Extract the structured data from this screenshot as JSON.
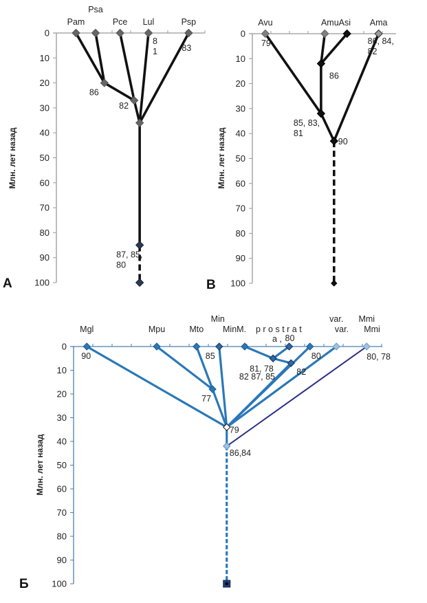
{
  "chart_data": [
    {
      "type": "tree",
      "panel": "A",
      "ylabel": "Млн. лет назад",
      "ylim": [
        0,
        100
      ],
      "yticks": [
        0,
        10,
        20,
        30,
        40,
        50,
        60,
        70,
        80,
        90,
        100
      ],
      "axis_color": "#999999",
      "line_color": "#111111",
      "marker_color": "#666666",
      "root_marker_color": "#2a3a55",
      "taxa": [
        {
          "id": "pam",
          "name": "Pam",
          "x": 1,
          "y": 0
        },
        {
          "id": "psa",
          "name": "Psa",
          "x": 2,
          "y": 0
        },
        {
          "id": "pce",
          "name": "Pce",
          "x": 3.25,
          "y": 0
        },
        {
          "id": "lul",
          "name": "Lul",
          "x": 4.7,
          "y": 0,
          "annotation": "8\n1"
        },
        {
          "id": "psp",
          "name": "Psp",
          "x": 6.75,
          "y": 0,
          "annotation": "83"
        }
      ],
      "nodes": [
        {
          "id": "n1",
          "x": 2.45,
          "y": 20,
          "annotation": "86"
        },
        {
          "id": "n2",
          "x": 3.97,
          "y": 27,
          "annotation": "82"
        },
        {
          "id": "n3",
          "x": 4.25,
          "y": 36,
          "annotation": ""
        },
        {
          "id": "n4",
          "x": 4.25,
          "y": 85,
          "annotation": "87, 85,\n80",
          "root": true
        },
        {
          "id": "n5",
          "x": 4.25,
          "y": 100,
          "annotation": "",
          "root": true
        }
      ],
      "edges": [
        [
          "pam",
          "n1"
        ],
        [
          "psa",
          "n1"
        ],
        [
          "n1",
          "n2"
        ],
        [
          "pce",
          "n2"
        ],
        [
          "n2",
          "n3"
        ],
        [
          "lul",
          "n3"
        ],
        [
          "psp",
          "n3"
        ],
        [
          "n3",
          "n4"
        ],
        {
          "from": "n4",
          "to": "n5",
          "dashed": true
        }
      ]
    },
    {
      "type": "tree",
      "panel": "B",
      "ylabel": "Млн. лет назад",
      "ylim": [
        0,
        100
      ],
      "yticks": [
        0,
        10,
        20,
        30,
        40,
        50,
        60,
        70,
        80,
        90,
        100
      ],
      "axis_color": "#999999",
      "line_color": "#111111",
      "taxa": [
        {
          "id": "avu",
          "name": "Avu",
          "x": 0.7,
          "y": 0,
          "annotation": "79"
        },
        {
          "id": "amu",
          "name": "Amu",
          "x": 3.9,
          "y": 0
        },
        {
          "id": "asi",
          "name": "Asi",
          "x": 5.1,
          "y": 0
        },
        {
          "id": "ama",
          "name": "Ama",
          "x": 6.8,
          "y": 0,
          "annotation": "86, 84,\n82"
        }
      ],
      "taxa_label_combined": "AmuAsi",
      "nodes": [
        {
          "id": "b1",
          "x": 3.7,
          "y": 12,
          "annotation": "86"
        },
        {
          "id": "b2",
          "x": 3.7,
          "y": 32,
          "annotation": "85, 83,\n81"
        },
        {
          "id": "b3",
          "x": 4.4,
          "y": 43,
          "annotation": "90"
        },
        {
          "id": "b4",
          "x": 4.4,
          "y": 100,
          "annotation": ""
        }
      ],
      "edges": [
        [
          "amu",
          "b1"
        ],
        [
          "asi",
          "b1"
        ],
        [
          "b1",
          "b2"
        ],
        [
          "avu",
          "b2"
        ],
        [
          "b2",
          "b3"
        ],
        [
          "ama",
          "b3"
        ],
        {
          "from": "b3",
          "to": "b4",
          "dashed": true
        }
      ]
    },
    {
      "type": "tree",
      "panel": "Б",
      "ylabel": "Млн. лет назад",
      "ylim": [
        0,
        100
      ],
      "yticks": [
        0,
        10,
        20,
        30,
        40,
        50,
        60,
        70,
        80,
        90,
        100
      ],
      "axis_color": "#4a7fb0",
      "line_color": "#2a78b8",
      "dark_line_color": "#2b2f86",
      "taxa": [
        {
          "id": "mgl",
          "name": "Mgl",
          "x": 0.7,
          "y": 0,
          "annotation": "90"
        },
        {
          "id": "mpu",
          "name": "Mpu",
          "x": 4.4,
          "y": 0
        },
        {
          "id": "mto",
          "name": "Mto",
          "x": 6.5,
          "y": 0
        },
        {
          "id": "min",
          "name": "Min",
          "x": 7.7,
          "y": 0,
          "annotation": "85"
        },
        {
          "id": "mpr1",
          "name": "",
          "x": 9.05,
          "y": 0,
          "annotation": "82 87, 85"
        },
        {
          "id": "mpr2",
          "name": "",
          "x": 11.4,
          "y": 0,
          "annotation": "80"
        },
        {
          "id": "mpr3",
          "name": "",
          "x": 12.5,
          "y": 0,
          "annotation": "80"
        },
        {
          "id": "var",
          "name": "var.",
          "x": 13.9,
          "y": 0
        },
        {
          "id": "mmi",
          "name": "Mmi",
          "x": 15.5,
          "y": 0,
          "annotation": "80, 78"
        }
      ],
      "header_labels": {
        "min_m": "MinM.",
        "prostrata": "p r o s t r a t",
        "prostrata_tail": "a ,",
        "var": "var.",
        "mmi": "Mmi"
      },
      "nodes": [
        {
          "id": "c1",
          "x": 10.55,
          "y": 5,
          "annotation": "81, 78"
        },
        {
          "id": "c2",
          "x": 11.5,
          "y": 7,
          "annotation": "82"
        },
        {
          "id": "c3",
          "x": 7.35,
          "y": 18,
          "annotation": "77"
        },
        {
          "id": "c4",
          "x": 8.1,
          "y": 34,
          "annotation": "79"
        },
        {
          "id": "c5",
          "x": 8.1,
          "y": 42,
          "annotation": "86,84"
        },
        {
          "id": "c6",
          "x": 8.1,
          "y": 100,
          "annotation": ""
        }
      ],
      "edges": [
        [
          "mpr1",
          "c1"
        ],
        [
          "mpr2",
          "c1"
        ],
        [
          "c1",
          "c2"
        ],
        [
          "mpu",
          "c3"
        ],
        [
          "mto",
          "c3"
        ],
        [
          "mgl",
          "c4"
        ],
        [
          "c3",
          "c4"
        ],
        [
          "min",
          "c4"
        ],
        [
          "c2",
          "c4"
        ],
        [
          "mpr3",
          "c4"
        ],
        [
          "var",
          "c4"
        ],
        {
          "from": "mmi",
          "to": "c5",
          "dark": true
        },
        [
          "c4",
          "c5"
        ],
        {
          "from": "c5",
          "to": "c6",
          "dashed": true
        }
      ]
    }
  ]
}
